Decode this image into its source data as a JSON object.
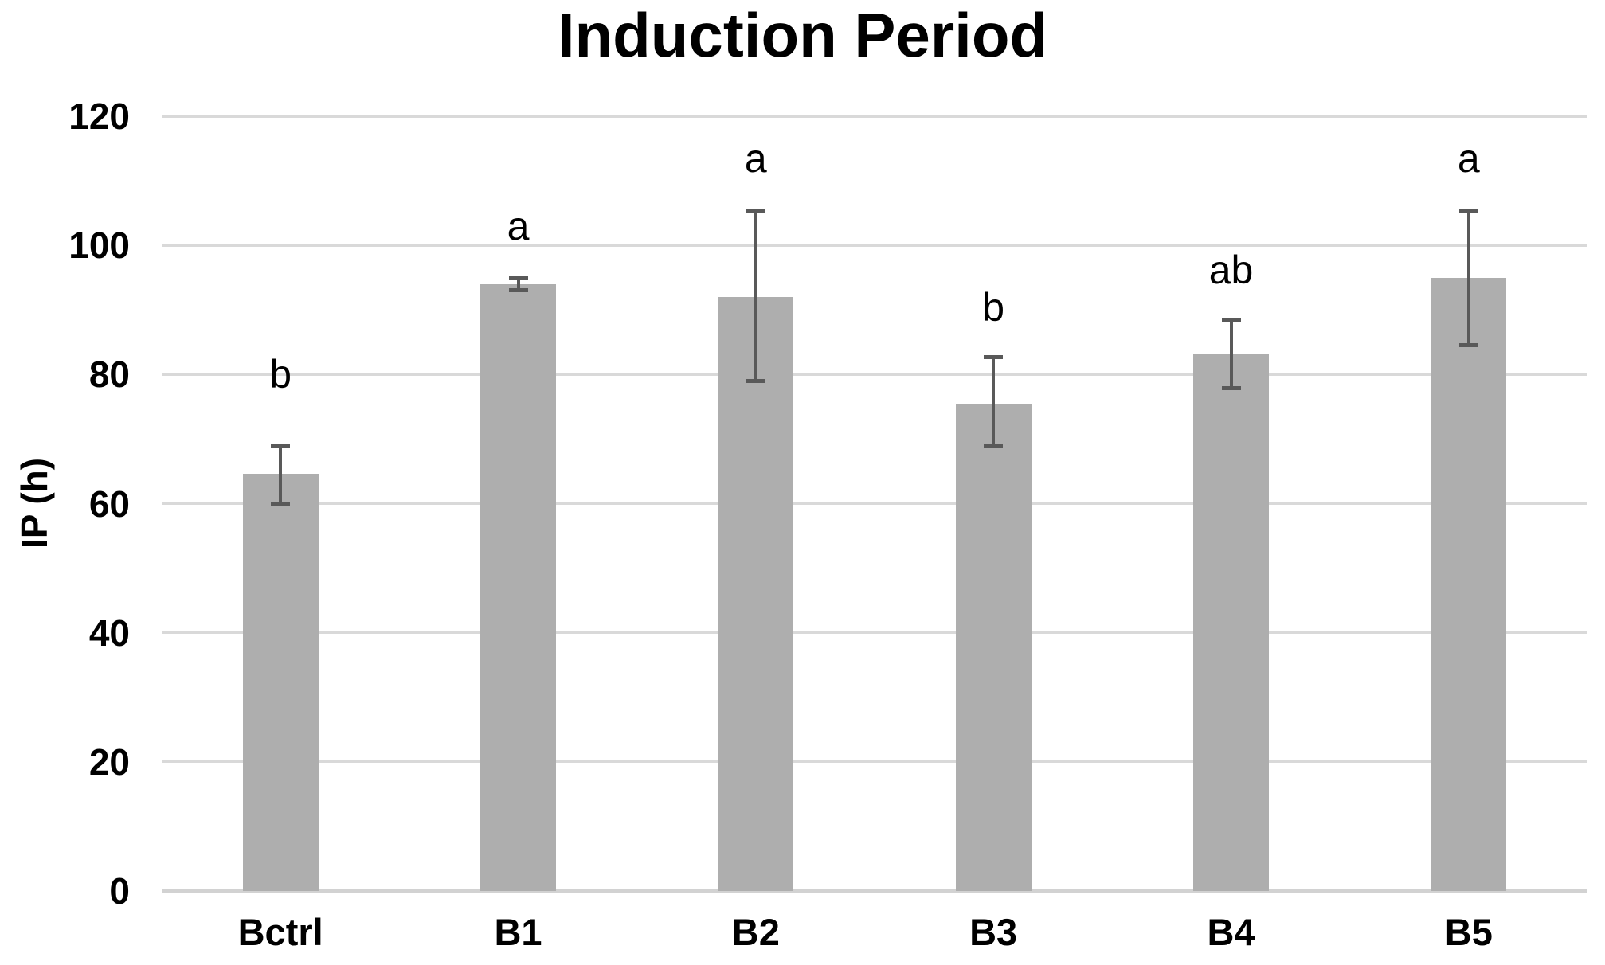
{
  "title": "Induction Period",
  "chart_data": {
    "type": "bar",
    "title": "Induction Period",
    "xlabel": "",
    "ylabel": "IP (h)",
    "ylim": [
      0,
      120
    ],
    "yticks": [
      0,
      20,
      40,
      60,
      80,
      100,
      120
    ],
    "grid": true,
    "legend": "none",
    "bar_color": "#aeaeae",
    "error_bar_color": "#595959",
    "gridline_color": "#d9d9d9",
    "categories": [
      "Bctrl",
      "B1",
      "B2",
      "B3",
      "B4",
      "B5"
    ],
    "values": [
      64.6,
      94.0,
      92.0,
      75.3,
      83.3,
      95.0
    ],
    "error_low": [
      60.0,
      93.1,
      79.0,
      68.9,
      77.9,
      84.6
    ],
    "error_high": [
      69.0,
      95.0,
      105.5,
      82.8,
      88.6,
      105.5
    ],
    "sig_letters": [
      "b",
      "a",
      "a",
      "b",
      "ab",
      "a"
    ],
    "sig_letter_y": [
      80.0,
      103.0,
      113.5,
      90.4,
      96.2,
      113.5
    ]
  }
}
